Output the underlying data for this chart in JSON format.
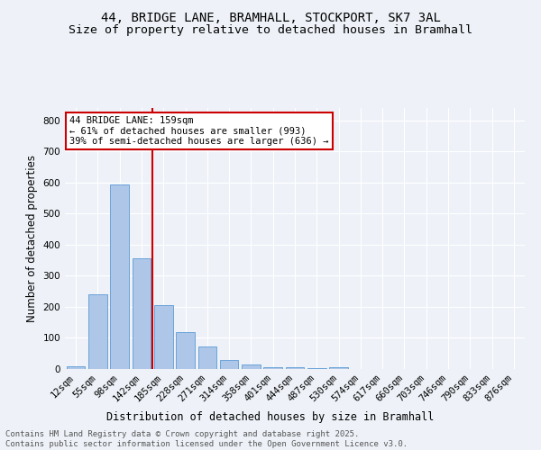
{
  "title1": "44, BRIDGE LANE, BRAMHALL, STOCKPORT, SK7 3AL",
  "title2": "Size of property relative to detached houses in Bramhall",
  "xlabel": "Distribution of detached houses by size in Bramhall",
  "ylabel": "Number of detached properties",
  "bar_labels": [
    "12sqm",
    "55sqm",
    "98sqm",
    "142sqm",
    "185sqm",
    "228sqm",
    "271sqm",
    "314sqm",
    "358sqm",
    "401sqm",
    "444sqm",
    "487sqm",
    "530sqm",
    "574sqm",
    "617sqm",
    "660sqm",
    "703sqm",
    "746sqm",
    "790sqm",
    "833sqm",
    "876sqm"
  ],
  "bar_values": [
    8,
    240,
    595,
    355,
    205,
    118,
    72,
    28,
    15,
    5,
    5,
    4,
    7,
    0,
    0,
    0,
    0,
    0,
    0,
    0,
    0
  ],
  "bar_color": "#aec6e8",
  "bar_edgecolor": "#5b9bd5",
  "vline_x_idx": 3,
  "vline_color": "#cc0000",
  "annotation_text": "44 BRIDGE LANE: 159sqm\n← 61% of detached houses are smaller (993)\n39% of semi-detached houses are larger (636) →",
  "annotation_box_color": "#ffffff",
  "annotation_box_edgecolor": "#cc0000",
  "ylim": [
    0,
    840
  ],
  "yticks": [
    0,
    100,
    200,
    300,
    400,
    500,
    600,
    700,
    800
  ],
  "footer_text": "Contains HM Land Registry data © Crown copyright and database right 2025.\nContains public sector information licensed under the Open Government Licence v3.0.",
  "background_color": "#eef2f8",
  "grid_color": "#ffffff",
  "title_fontsize": 10,
  "subtitle_fontsize": 9.5,
  "axis_label_fontsize": 8.5,
  "tick_fontsize": 7.5,
  "annotation_fontsize": 7.5,
  "footer_fontsize": 6.5
}
